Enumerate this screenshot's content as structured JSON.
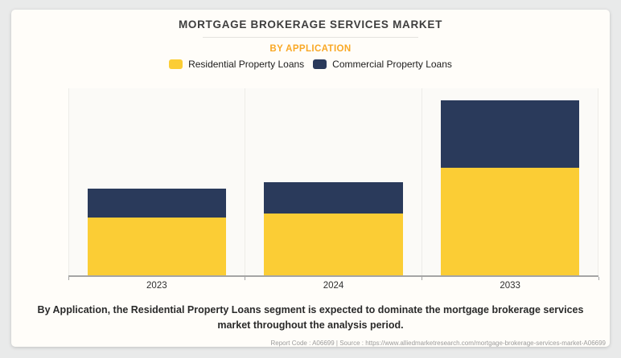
{
  "page": {
    "background": "#e9eaea",
    "card_background": "#fffdf9"
  },
  "header": {
    "title": "MORTGAGE BROKERAGE SERVICES MARKET",
    "subtitle": "BY APPLICATION",
    "subtitle_color": "#f9a825"
  },
  "legend": {
    "items": [
      {
        "label": "Residential Property Loans",
        "color": "#fbcd35"
      },
      {
        "label": "Commercial Property Loans",
        "color": "#2a3a5b"
      }
    ]
  },
  "chart_data": {
    "type": "bar",
    "stacked": true,
    "title": "MORTGAGE BROKERAGE SERVICES MARKET",
    "subtitle": "BY APPLICATION",
    "categories": [
      "2023",
      "2024",
      "2033"
    ],
    "series": [
      {
        "name": "Residential Property Loans",
        "color": "#fbcd35",
        "values": [
          33.3,
          35.3,
          61.6
        ]
      },
      {
        "name": "Commercial Property Loans",
        "color": "#2a3a5b",
        "values": [
          16.4,
          18.1,
          38.4
        ]
      }
    ],
    "xlabel": "",
    "ylabel": "",
    "ylim": [
      0,
      108
    ],
    "units": "relative index, estimated from bar heights (no y-axis labels shown; 2033 total = 100)",
    "y_axis_shown": false,
    "grid": "vertical-only",
    "legend_position": "top"
  },
  "caption": {
    "text": "By Application, the Residential Property Loans segment is expected to dominate the mortgage brokerage services market throughout the analysis period."
  },
  "footer": {
    "text": "Report Code : A06699  |  Source : https://www.alliedmarketresearch.com/mortgage-brokerage-services-market-A06699"
  }
}
